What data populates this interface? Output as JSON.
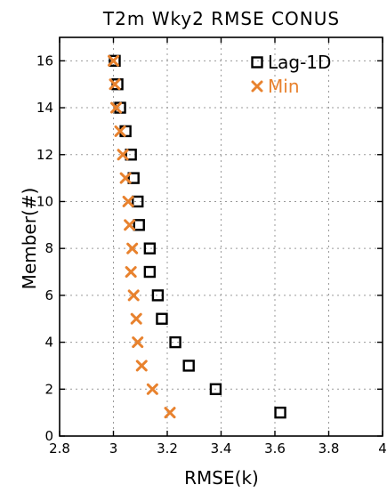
{
  "chart_data": {
    "type": "scatter",
    "title": "T2m  Wky2  RMSE  CONUS",
    "xlabel": "RMSE(k)",
    "ylabel": "Member(#)",
    "xlim": [
      2.8,
      4.0
    ],
    "ylim": [
      0,
      17
    ],
    "xticks": [
      2.8,
      3,
      3.2,
      3.4,
      3.6,
      3.8,
      4
    ],
    "xtick_labels": [
      "2.8",
      "3",
      "3.2",
      "3.4",
      "3.6",
      "3.8",
      "4"
    ],
    "yticks": [
      0,
      2,
      4,
      6,
      8,
      10,
      12,
      14,
      16
    ],
    "ytick_labels": [
      "0",
      "2",
      "4",
      "6",
      "8",
      "10",
      "12",
      "14",
      "16"
    ],
    "grid": true,
    "legend_position": "top-right",
    "series": [
      {
        "name": "Lag-1D",
        "marker": "square",
        "color": "#000000",
        "x": [
          3.62,
          3.38,
          3.28,
          3.23,
          3.18,
          3.165,
          3.135,
          3.135,
          3.095,
          3.09,
          3.075,
          3.065,
          3.045,
          3.025,
          3.015,
          3.005
        ],
        "y": [
          1,
          2,
          3,
          4,
          5,
          6,
          7,
          8,
          9,
          10,
          11,
          12,
          13,
          14,
          15,
          16
        ]
      },
      {
        "name": "Min",
        "marker": "x",
        "color": "#e8822e",
        "x": [
          3.21,
          3.145,
          3.105,
          3.09,
          3.085,
          3.075,
          3.065,
          3.07,
          3.06,
          3.055,
          3.045,
          3.035,
          3.025,
          3.01,
          3.005,
          3.0
        ],
        "y": [
          1,
          2,
          3,
          4,
          5,
          6,
          7,
          8,
          9,
          10,
          11,
          12,
          13,
          14,
          15,
          16
        ]
      }
    ]
  }
}
